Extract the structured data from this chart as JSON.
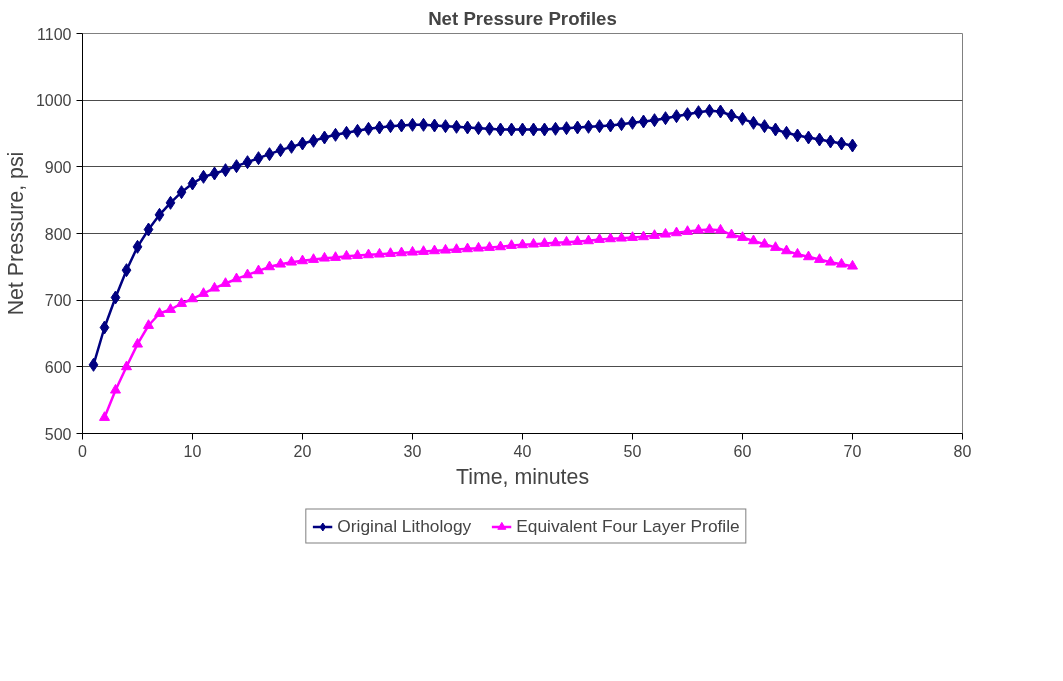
{
  "chart_data": {
    "type": "line",
    "title": "Net Pressure Profiles",
    "xlabel": "Time, minutes",
    "ylabel": "Net Pressure, psi",
    "xlim": [
      0,
      80
    ],
    "xticks": [
      0,
      10,
      20,
      30,
      40,
      50,
      60,
      70,
      80
    ],
    "ylim": [
      500,
      1100
    ],
    "yticks": [
      500,
      600,
      700,
      800,
      900,
      1000,
      1100
    ],
    "grid": "y",
    "legend": "bottom",
    "line_style": "solid",
    "series": [
      {
        "name": "Original Lithology",
        "color": "#000080",
        "marker": "diamond",
        "x": [
          1,
          2,
          3,
          4,
          5,
          6,
          7,
          8,
          9,
          10,
          11,
          12,
          13,
          14,
          15,
          16,
          17,
          18,
          19,
          20,
          21,
          22,
          23,
          24,
          25,
          26,
          27,
          28,
          29,
          30,
          31,
          32,
          33,
          34,
          35,
          36,
          37,
          38,
          39,
          40,
          41,
          42,
          43,
          44,
          45,
          46,
          47,
          48,
          49,
          50,
          51,
          52,
          53,
          54,
          55,
          56,
          57,
          58,
          59,
          60,
          61,
          62,
          63,
          64,
          65,
          66,
          67,
          68,
          69,
          70
        ],
        "values": [
          603,
          659,
          704,
          745,
          780,
          806,
          828,
          846,
          862,
          875,
          885,
          890,
          895,
          901,
          907,
          913,
          919,
          925,
          930,
          935,
          939,
          944,
          948,
          951,
          954,
          957,
          959,
          961,
          962,
          963,
          963,
          962,
          961,
          960,
          959,
          958,
          957,
          956,
          956,
          956,
          956,
          956,
          957,
          958,
          959,
          960,
          961,
          962,
          964,
          966,
          968,
          970,
          973,
          976,
          979,
          982,
          984,
          983,
          977,
          972,
          966,
          961,
          956,
          951,
          947,
          944,
          941,
          938,
          935,
          932
        ]
      },
      {
        "name": "Equivalent Four Layer Profile",
        "color": "#ff00ff",
        "marker": "triangle",
        "x": [
          2,
          3,
          4,
          5,
          6,
          7,
          8,
          9,
          10,
          11,
          12,
          13,
          14,
          15,
          16,
          17,
          18,
          19,
          20,
          21,
          22,
          23,
          24,
          25,
          26,
          27,
          28,
          29,
          30,
          31,
          32,
          33,
          34,
          35,
          36,
          37,
          38,
          39,
          40,
          41,
          42,
          43,
          44,
          45,
          46,
          47,
          48,
          49,
          50,
          51,
          52,
          53,
          54,
          55,
          56,
          57,
          58,
          59,
          60,
          61,
          62,
          63,
          64,
          65,
          66,
          67,
          68,
          69,
          70
        ],
        "values": [
          524,
          565,
          600,
          634,
          662,
          680,
          686,
          695,
          702,
          710,
          718,
          725,
          732,
          738,
          744,
          750,
          754,
          757,
          759,
          761,
          763,
          764,
          766,
          767,
          768,
          769,
          770,
          771,
          772,
          773,
          774,
          775,
          776,
          777,
          778,
          779,
          780,
          782,
          783,
          784,
          785,
          786,
          787,
          788,
          789,
          791,
          792,
          793,
          794,
          795,
          797,
          799,
          801,
          803,
          805,
          806,
          805,
          798,
          794,
          789,
          784,
          779,
          774,
          769,
          765,
          761,
          757,
          754,
          751
        ]
      }
    ]
  }
}
